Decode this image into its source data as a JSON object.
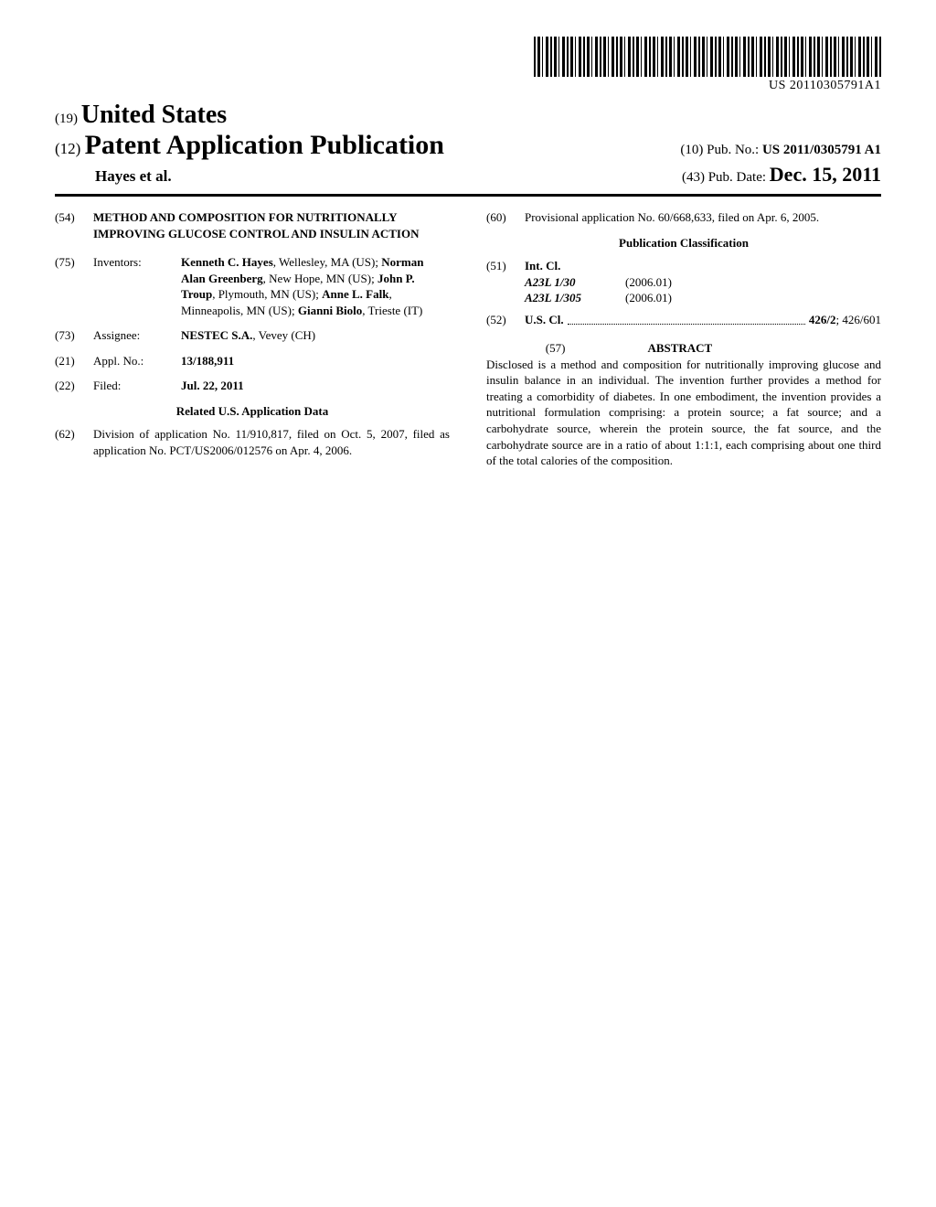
{
  "barcode_text": "US 20110305791A1",
  "header": {
    "country_code": "(19)",
    "country": "United States",
    "pub_code": "(12)",
    "pub_type": "Patent Application Publication",
    "authors_line": "Hayes et al.",
    "pubno_code": "(10)",
    "pubno_label": "Pub. No.:",
    "pubno_value": "US 2011/0305791 A1",
    "pubdate_code": "(43)",
    "pubdate_label": "Pub. Date:",
    "pubdate_value": "Dec. 15, 2011"
  },
  "left": {
    "title_code": "(54)",
    "title": "METHOD AND COMPOSITION FOR NUTRITIONALLY IMPROVING GLUCOSE CONTROL AND INSULIN ACTION",
    "inventors_code": "(75)",
    "inventors_label": "Inventors:",
    "inventors_value_parts": [
      {
        "b": "Kenneth C. Hayes",
        "r": ", Wellesley, MA (US); "
      },
      {
        "b": "Norman Alan Greenberg",
        "r": ", New Hope, MN (US); "
      },
      {
        "b": "John P. Troup",
        "r": ", Plymouth, MN (US); "
      },
      {
        "b": "Anne L. Falk",
        "r": ", Minneapolis, MN (US); "
      },
      {
        "b": "Gianni Biolo",
        "r": ", Trieste (IT)"
      }
    ],
    "assignee_code": "(73)",
    "assignee_label": "Assignee:",
    "assignee_bold": "NESTEC S.A.",
    "assignee_rest": ", Vevey (CH)",
    "applno_code": "(21)",
    "applno_label": "Appl. No.:",
    "applno_value": "13/188,911",
    "filed_code": "(22)",
    "filed_label": "Filed:",
    "filed_value": "Jul. 22, 2011",
    "related_heading": "Related U.S. Application Data",
    "division_code": "(62)",
    "division_text": "Division of application No. 11/910,817, filed on Oct. 5, 2007, filed as application No. PCT/US2006/012576 on Apr. 4, 2006."
  },
  "right": {
    "provisional_code": "(60)",
    "provisional_text": "Provisional application No. 60/668,633, filed on Apr. 6, 2005.",
    "classif_heading": "Publication Classification",
    "intcl_code": "(51)",
    "intcl_label": "Int. Cl.",
    "intcl": [
      {
        "symbol": "A23L 1/30",
        "edition": "(2006.01)"
      },
      {
        "symbol": "A23L 1/305",
        "edition": "(2006.01)"
      }
    ],
    "uscl_code": "(52)",
    "uscl_label": "U.S. Cl.",
    "uscl_main": "426/2",
    "uscl_rest": "; 426/601",
    "abstract_code": "(57)",
    "abstract_heading": "ABSTRACT",
    "abstract_body": "Disclosed is a method and composition for nutritionally improving glucose and insulin balance in an individual. The invention further provides a method for treating a comorbidity of diabetes. In one embodiment, the invention provides a nutritional formulation comprising: a protein source; a fat source; and a carbohydrate source, wherein the protein source, the fat source, and the carbohydrate source are in a ratio of about 1:1:1, each comprising about one third of the total calories of the composition."
  }
}
